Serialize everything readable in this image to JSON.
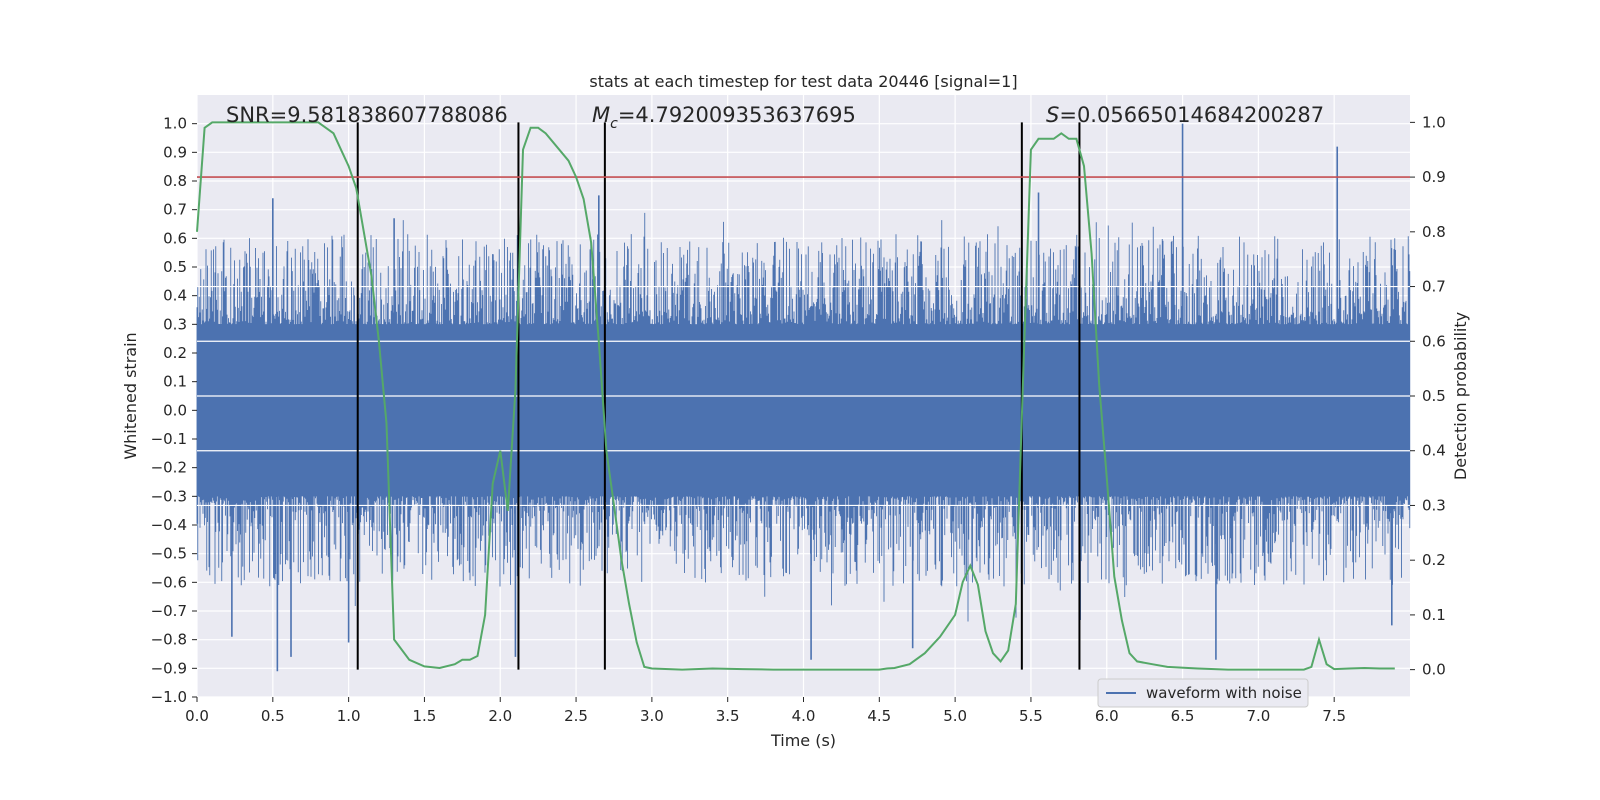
{
  "chart_data": {
    "type": "line",
    "title": "stats at each timestep for test data 20446 [signal=1]",
    "xlabel": "Time (s)",
    "ylabel": "Whitened strain",
    "y2label": "Detection probability",
    "xlim": [
      0.0,
      8.0
    ],
    "ylim": [
      -1.0,
      1.1
    ],
    "y2lim": [
      -0.05,
      1.05
    ],
    "x_ticks": [
      "0.0",
      "0.5",
      "1.0",
      "1.5",
      "2.0",
      "2.5",
      "3.0",
      "3.5",
      "4.0",
      "4.5",
      "5.0",
      "5.5",
      "6.0",
      "6.5",
      "7.0",
      "7.5"
    ],
    "y_ticks": [
      "1.0",
      "0.9",
      "0.8",
      "0.7",
      "0.6",
      "0.5",
      "0.4",
      "0.3",
      "0.2",
      "0.1",
      "0.0",
      "-0.1",
      "-0.2",
      "-0.3",
      "-0.4",
      "-0.5",
      "-0.6",
      "-0.7",
      "-0.8",
      "-0.9",
      "-1.0"
    ],
    "y2_ticks": [
      "1.0",
      "0.9",
      "0.8",
      "0.7",
      "0.6",
      "0.5",
      "0.4",
      "0.3",
      "0.2",
      "0.1",
      "0.0"
    ],
    "grid": true,
    "legend_placement": "lower-right",
    "annotations": {
      "snr": "SNR=9.581838607788086",
      "mc_symbol": "M",
      "mc_sub": "c",
      "mc_value": "=4.792009353637695",
      "s_symbol": "S",
      "s_value": "=0.05665014684200287"
    },
    "series": [
      {
        "name": "waveform with noise",
        "role": "strain",
        "color": "#4c72b0",
        "envelope": {
          "core_abs": 0.3,
          "typical_peak": 0.6,
          "max": 1.0,
          "min": -0.91
        },
        "notable_peaks": [
          {
            "x": 0.5,
            "y": 0.74
          },
          {
            "x": 0.53,
            "y": -0.91
          },
          {
            "x": 0.62,
            "y": -0.86
          },
          {
            "x": 0.23,
            "y": -0.79
          },
          {
            "x": 1.0,
            "y": -0.81
          },
          {
            "x": 1.3,
            "y": 0.67
          },
          {
            "x": 2.1,
            "y": -0.86
          },
          {
            "x": 2.65,
            "y": 0.75
          },
          {
            "x": 4.05,
            "y": -0.87
          },
          {
            "x": 4.72,
            "y": -0.83
          },
          {
            "x": 5.55,
            "y": 0.76
          },
          {
            "x": 6.5,
            "y": 1.0
          },
          {
            "x": 6.72,
            "y": -0.87
          },
          {
            "x": 7.52,
            "y": 0.92
          },
          {
            "x": 7.88,
            "y": -0.75
          }
        ]
      },
      {
        "name": "",
        "role": "detection probability",
        "color": "#55a868",
        "x": [
          0.0,
          0.05,
          0.1,
          0.2,
          0.4,
          0.6,
          0.8,
          0.9,
          0.95,
          1.0,
          1.05,
          1.1,
          1.15,
          1.2,
          1.25,
          1.3,
          1.4,
          1.5,
          1.6,
          1.7,
          1.75,
          1.8,
          1.85,
          1.9,
          1.95,
          2.0,
          2.05,
          2.1,
          2.15,
          2.2,
          2.25,
          2.3,
          2.45,
          2.5,
          2.55,
          2.6,
          2.65,
          2.7,
          2.75,
          2.8,
          2.85,
          2.9,
          2.95,
          3.0,
          3.2,
          3.4,
          3.6,
          3.8,
          4.0,
          4.2,
          4.4,
          4.5,
          4.55,
          4.6,
          4.7,
          4.8,
          4.9,
          5.0,
          5.05,
          5.1,
          5.15,
          5.2,
          5.25,
          5.3,
          5.35,
          5.4,
          5.45,
          5.5,
          5.55,
          5.6,
          5.65,
          5.7,
          5.75,
          5.8,
          5.85,
          5.9,
          5.95,
          6.0,
          6.05,
          6.1,
          6.15,
          6.2,
          6.3,
          6.4,
          6.6,
          6.8,
          7.0,
          7.2,
          7.3,
          7.35,
          7.4,
          7.45,
          7.5,
          7.6,
          7.7,
          7.8,
          7.9
        ],
        "y": [
          0.8,
          0.99,
          1.0,
          1.0,
          1.0,
          1.0,
          1.0,
          0.98,
          0.95,
          0.92,
          0.88,
          0.8,
          0.72,
          0.6,
          0.45,
          0.055,
          0.018,
          0.006,
          0.003,
          0.01,
          0.018,
          0.018,
          0.025,
          0.1,
          0.34,
          0.4,
          0.29,
          0.51,
          0.95,
          0.99,
          0.99,
          0.98,
          0.93,
          0.9,
          0.86,
          0.78,
          0.6,
          0.4,
          0.3,
          0.2,
          0.12,
          0.05,
          0.005,
          0.002,
          0.0,
          0.002,
          0.001,
          0.0,
          0.0,
          0.0,
          0.0,
          0.0,
          0.002,
          0.003,
          0.01,
          0.03,
          0.06,
          0.1,
          0.16,
          0.19,
          0.155,
          0.07,
          0.03,
          0.015,
          0.035,
          0.12,
          0.55,
          0.95,
          0.97,
          0.97,
          0.97,
          0.98,
          0.97,
          0.97,
          0.92,
          0.76,
          0.52,
          0.35,
          0.17,
          0.09,
          0.03,
          0.015,
          0.01,
          0.005,
          0.002,
          0.0,
          0.0,
          0.0,
          0.0,
          0.005,
          0.055,
          0.01,
          0.001,
          0.002,
          0.003,
          0.002,
          0.002
        ]
      }
    ],
    "threshold": {
      "y2": 0.9,
      "color": "#c44e52"
    },
    "vertical_markers": [
      1.06,
      2.12,
      2.69,
      5.44,
      5.82
    ]
  }
}
